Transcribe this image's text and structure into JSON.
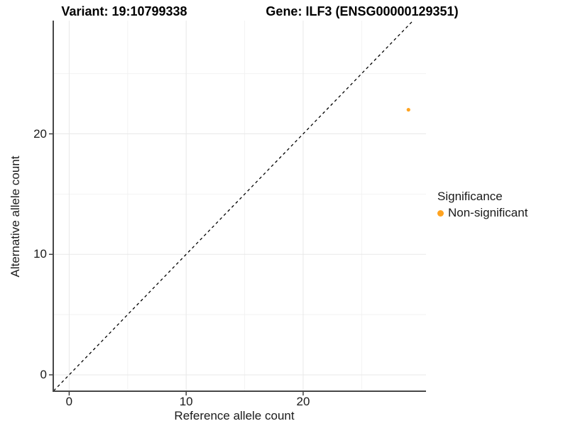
{
  "titles": {
    "variant": "Variant: 19:10799338",
    "gene": "Gene: ILF3 (ENSG00000129351)"
  },
  "chart_data": {
    "type": "scatter",
    "title": "Variant: 19:10799338  Gene: ILF3 (ENSG00000129351)",
    "xlabel": "Reference allele count",
    "ylabel": "Alternative allele count",
    "xlim": [
      -1.3,
      30.5
    ],
    "ylim": [
      -1.3,
      29.4
    ],
    "x_ticks": [
      0,
      10,
      20
    ],
    "y_ticks": [
      0,
      10,
      20
    ],
    "x_minor_ticks": [
      5,
      15,
      25
    ],
    "y_minor_ticks": [
      5,
      15,
      25
    ],
    "grid": "major and minor, very light gray on white",
    "reference_line": {
      "equation": "y = x",
      "style": "dashed",
      "color": "#000000"
    },
    "series": [
      {
        "name": "Non-significant",
        "color": "#FFA320",
        "points": [
          {
            "x": 29,
            "y": 22
          }
        ]
      }
    ],
    "legend": {
      "title": "Significance",
      "position": "right",
      "entries": [
        {
          "label": "Non-significant",
          "color": "#FFA320"
        }
      ]
    }
  },
  "colors": {
    "point": "#FFA320",
    "axis_line": "#474747",
    "tick_mark": "#333333",
    "grid_major": "#E8E8E8",
    "grid_minor": "#F2F2F2",
    "dashed_line": "#000000",
    "text": "#1a1a1a"
  }
}
